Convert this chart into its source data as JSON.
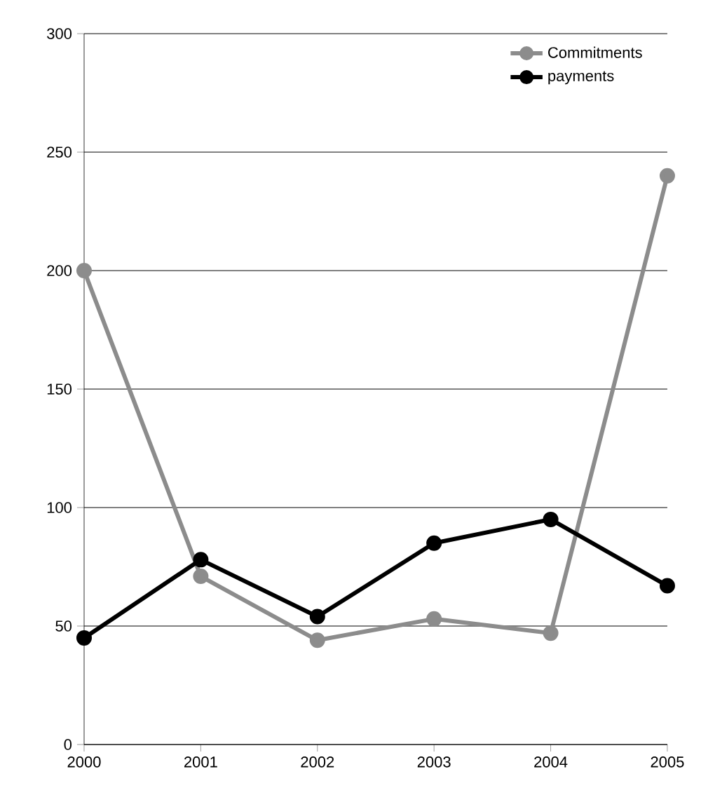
{
  "chart_data": {
    "type": "line",
    "categories": [
      "2000",
      "2001",
      "2002",
      "2003",
      "2004",
      "2005"
    ],
    "series": [
      {
        "name": "Commitments",
        "color": "#8c8c8c",
        "values": [
          200,
          71,
          44,
          53,
          47,
          240
        ]
      },
      {
        "name": "payments",
        "color": "#000000",
        "values": [
          45,
          78,
          54,
          85,
          95,
          67
        ]
      }
    ],
    "ylim": [
      0,
      300
    ],
    "yticks": [
      0,
      50,
      100,
      150,
      200,
      250,
      300
    ],
    "grid": "y",
    "legend": "top right",
    "marker": "circle",
    "line_style": "solid"
  }
}
